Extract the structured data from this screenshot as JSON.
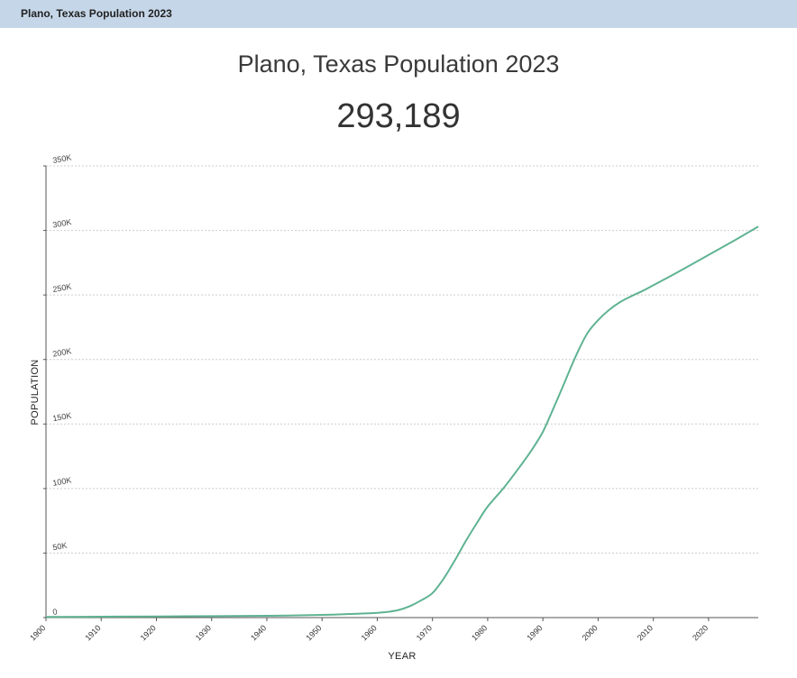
{
  "tab": {
    "title": "Plano, Texas Population 2023"
  },
  "header": {
    "title": "Plano, Texas Population 2023",
    "current_population": "293,189"
  },
  "colors": {
    "line": "#5fb392",
    "tabbar": "#c5d6e8",
    "grid": "#cccccc",
    "axis": "#555555"
  },
  "chart_data": {
    "type": "line",
    "xlabel": "YEAR",
    "ylabel": "POPULATION",
    "xlim": [
      1900,
      2029
    ],
    "ylim": [
      0,
      350000
    ],
    "x_ticks": [
      1900,
      1910,
      1920,
      1930,
      1940,
      1950,
      1960,
      1970,
      1980,
      1990,
      2000,
      2010,
      2020
    ],
    "y_ticks": [
      0,
      50000,
      100000,
      150000,
      200000,
      250000,
      300000,
      350000
    ],
    "y_tick_labels": [
      "0",
      "50K",
      "100K",
      "150K",
      "200K",
      "250K",
      "300K",
      "350K"
    ],
    "grid": true,
    "series": [
      {
        "x": [
          1900,
          1910,
          1920,
          1930,
          1940,
          1950,
          1955,
          1960,
          1962,
          1964,
          1966,
          1968,
          1970,
          1972,
          1974,
          1976,
          1978,
          1980,
          1983,
          1986,
          1988,
          1990,
          1992,
          1994,
          1996,
          1998,
          2000,
          2002,
          2004,
          2006,
          2008,
          2010,
          2015,
          2020,
          2025,
          2029
        ],
        "y": [
          500,
          700,
          900,
          1100,
          1400,
          2100,
          2800,
          3700,
          4500,
          6000,
          9000,
          13500,
          19000,
          30000,
          44000,
          59000,
          73000,
          86000,
          101000,
          118000,
          130000,
          144000,
          163000,
          183000,
          203000,
          220000,
          230500,
          238500,
          244500,
          249000,
          253000,
          257500,
          269000,
          281000,
          293000,
          303000
        ]
      }
    ]
  }
}
